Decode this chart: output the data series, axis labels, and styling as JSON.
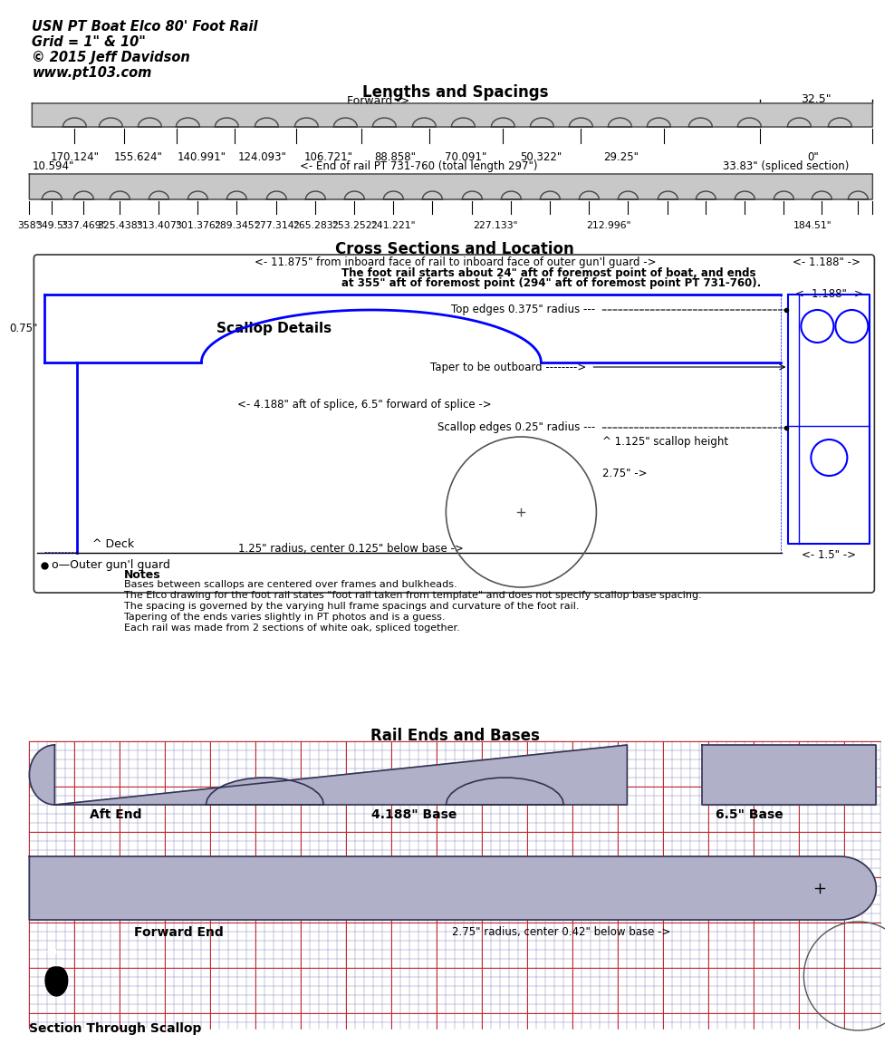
{
  "title_lines": [
    "USN PT Boat Elco 80' Foot Rail",
    "Grid = 1\" & 10\"",
    "© 2015 Jeff Davidson",
    "www.pt103.com"
  ],
  "section1_title": "Lengths and Spacings",
  "section2_title": "Cross Sections and Location",
  "section3_title": "Rail Ends and Bases",
  "bg_color": "#ffffff",
  "forward_label": "Forward ->",
  "top_end_label": "32.5\"",
  "top_extra_left": "10.594\"",
  "top_extra_right": "33.83\" (spliced section)",
  "top_mid_label": "<- End of rail PT 731-760 (total length 297\")",
  "cross_note1": "<- 11.875\" from inboard face of rail to inboard face of outer gun'l guard ->",
  "cross_note2": "The foot rail starts about 24\" aft of foremost point of boat, and ends",
  "cross_note3": "at 355\" aft of foremost point (294\" aft of foremost point PT 731-760).",
  "cross_dim_right": "<- 1.188\" ->",
  "cross_dim_bottom": "<- 1.5\" ->",
  "scallop_label": "Scallop Details",
  "scallop_note": "<- 4.188\" aft of splice, 6.5\" forward of splice ->",
  "dim_075": "0.75\"",
  "dim_275": "2.75\" ->",
  "radius_label": "1.25\" radius, center 0.125\" below base ->",
  "top_edges_label": "Top edges 0.375\" radius",
  "taper_label": "Taper to be outboard",
  "scallop_edges_label": "Scallop edges 0.25\" radius",
  "scallop_height_label": "^ 1.125\" scallop height",
  "deck_label": "^ Deck",
  "gunl_label": "o—Outer gun'l guard",
  "notes_title": "Notes",
  "notes": [
    "Bases between scallops are centered over frames and bulkheads.",
    "The Elco drawing for the foot rail states \"foot rail taken from template\" and does not specify scallop base spacing.",
    "The spacing is governed by the varying hull frame spacings and curvature of the foot rail.",
    "Tapering of the ends varies slightly in PT photos and is a guess.",
    "Each rail was made from 2 sections of white oak, spliced together."
  ],
  "aft_end_label": "Aft End",
  "base1_label": "4.188\" Base",
  "base2_label": "6.5\" Base",
  "forward_end_label": "Forward End",
  "fwd_radius_label": "2.75\" radius, center 0.42\" below base ->",
  "section_scallop_label": "Section Through Scallop",
  "rail_fill": "#b0b0c8",
  "rail_edge": "#333355",
  "grid_major": "#cc2222",
  "grid_minor": "#8888bb"
}
